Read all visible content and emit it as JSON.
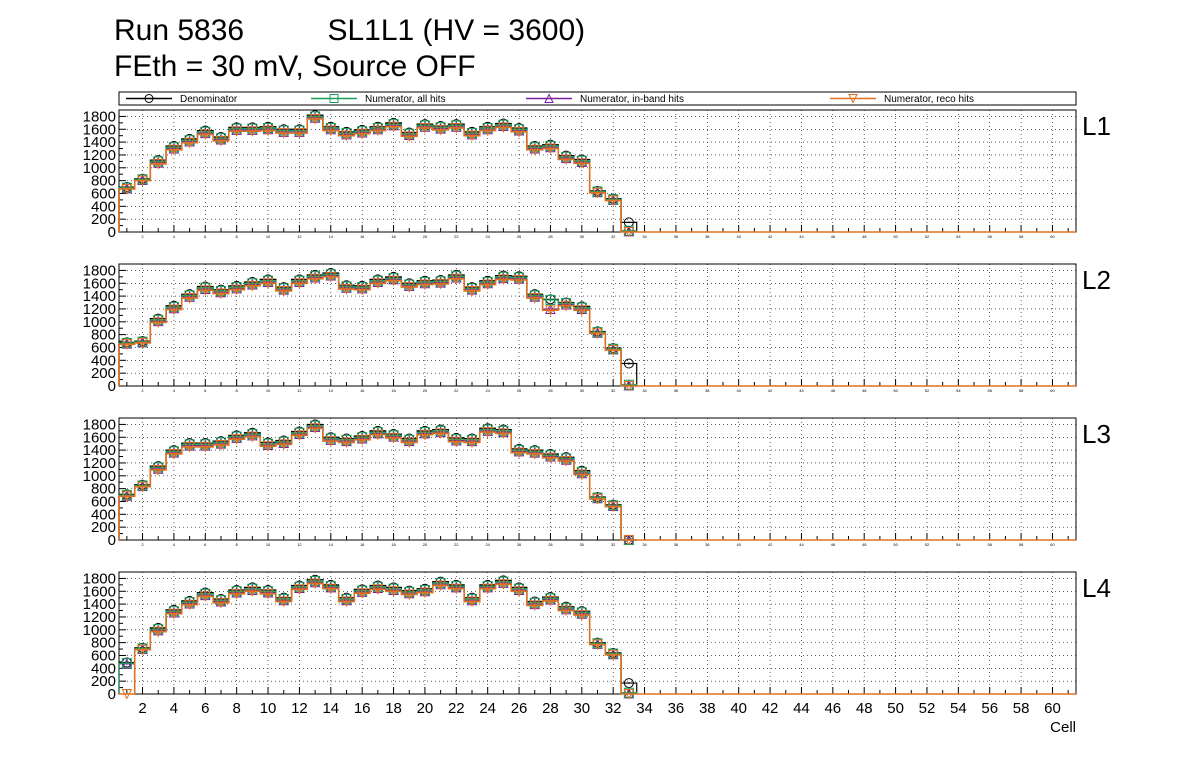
{
  "title_line1": "Run 5836          SL1L1 (HV = 3600)",
  "title_line2": "FEth = 30 mV, Source OFF",
  "colors": {
    "denominator": "#000000",
    "numerator_all": "#1a9e5a",
    "numerator_inband": "#7a1fa2",
    "numerator_reco": "#e07020"
  },
  "legend": [
    {
      "label": "Denominator",
      "marker": "circle",
      "color": "#000000"
    },
    {
      "label": "Numerator, all hits",
      "marker": "square",
      "color": "#1a9e5a"
    },
    {
      "label": "Numerator, in-band hits",
      "marker": "triangle-up",
      "color": "#7a1fa2"
    },
    {
      "label": "Numerator, reco hits",
      "marker": "triangle-down",
      "color": "#e07020"
    }
  ],
  "chart_data": {
    "type": "histogram",
    "xlabel": "Cell",
    "xlim": [
      0.5,
      61.5
    ],
    "ylim": [
      0,
      1900
    ],
    "xticks": [
      2,
      4,
      6,
      8,
      10,
      12,
      14,
      16,
      18,
      20,
      22,
      24,
      26,
      28,
      30,
      32,
      34,
      36,
      38,
      40,
      42,
      44,
      46,
      48,
      50,
      52,
      54,
      56,
      58,
      60
    ],
    "yticks": [
      0,
      200,
      400,
      600,
      800,
      1000,
      1200,
      1400,
      1600,
      1800
    ],
    "grid": true,
    "legend_position": "top",
    "cells": [
      1,
      2,
      3,
      4,
      5,
      6,
      7,
      8,
      9,
      10,
      11,
      12,
      13,
      14,
      15,
      16,
      17,
      18,
      19,
      20,
      21,
      22,
      23,
      24,
      25,
      26,
      27,
      28,
      29,
      30,
      31,
      32,
      33
    ],
    "panels": [
      {
        "label": "L1",
        "denominator": [
          700,
          830,
          1120,
          1340,
          1450,
          1580,
          1480,
          1630,
          1630,
          1640,
          1600,
          1600,
          1820,
          1640,
          1560,
          1590,
          1640,
          1700,
          1550,
          1680,
          1650,
          1680,
          1560,
          1640,
          1690,
          1620,
          1340,
          1360,
          1190,
          1130,
          640,
          520,
          150
        ],
        "numerator_all": [
          690,
          820,
          1100,
          1320,
          1430,
          1560,
          1460,
          1610,
          1610,
          1620,
          1580,
          1580,
          1800,
          1620,
          1540,
          1570,
          1620,
          1680,
          1530,
          1660,
          1630,
          1660,
          1540,
          1620,
          1670,
          1600,
          1320,
          1340,
          1170,
          1110,
          630,
          510,
          20
        ],
        "numerator_inband": [
          680,
          810,
          1080,
          1300,
          1410,
          1540,
          1440,
          1590,
          1590,
          1600,
          1560,
          1560,
          1780,
          1600,
          1520,
          1550,
          1600,
          1660,
          1510,
          1640,
          1610,
          1640,
          1520,
          1600,
          1650,
          1580,
          1300,
          1320,
          1150,
          1090,
          620,
          500,
          10
        ],
        "numerator_reco": [
          670,
          800,
          1060,
          1280,
          1390,
          1520,
          1420,
          1570,
          1570,
          1580,
          1540,
          1540,
          1760,
          1580,
          1500,
          1530,
          1580,
          1640,
          1490,
          1620,
          1590,
          1620,
          1500,
          1580,
          1630,
          1560,
          1280,
          1300,
          1130,
          1070,
          610,
          490,
          0
        ]
      },
      {
        "label": "L2",
        "denominator": [
          680,
          700,
          1050,
          1250,
          1430,
          1550,
          1500,
          1560,
          1620,
          1660,
          1540,
          1660,
          1730,
          1760,
          1570,
          1560,
          1660,
          1700,
          1600,
          1640,
          1650,
          1730,
          1540,
          1640,
          1720,
          1710,
          1430,
          1350,
          1300,
          1240,
          850,
          590,
          350
        ],
        "numerator_all": [
          670,
          690,
          1030,
          1230,
          1410,
          1530,
          1480,
          1540,
          1600,
          1640,
          1520,
          1640,
          1710,
          1740,
          1550,
          1540,
          1640,
          1680,
          1580,
          1620,
          1630,
          1710,
          1520,
          1620,
          1700,
          1690,
          1410,
          1340,
          1290,
          1220,
          840,
          580,
          20
        ],
        "numerator_inband": [
          660,
          680,
          1010,
          1210,
          1390,
          1510,
          1460,
          1520,
          1580,
          1620,
          1500,
          1620,
          1690,
          1720,
          1530,
          1520,
          1620,
          1660,
          1560,
          1600,
          1610,
          1690,
          1500,
          1600,
          1680,
          1670,
          1390,
          1200,
          1270,
          1200,
          830,
          570,
          10
        ],
        "numerator_reco": [
          650,
          670,
          990,
          1190,
          1370,
          1490,
          1440,
          1500,
          1560,
          1600,
          1480,
          1600,
          1670,
          1700,
          1510,
          1500,
          1600,
          1640,
          1540,
          1580,
          1590,
          1670,
          1480,
          1580,
          1660,
          1650,
          1370,
          1180,
          1250,
          1180,
          820,
          560,
          0
        ]
      },
      {
        "label": "L3",
        "denominator": [
          710,
          860,
          1150,
          1400,
          1510,
          1510,
          1540,
          1630,
          1670,
          1520,
          1550,
          1690,
          1800,
          1600,
          1580,
          1620,
          1700,
          1650,
          1580,
          1700,
          1720,
          1590,
          1580,
          1740,
          1720,
          1420,
          1400,
          1340,
          1290,
          1080,
          670,
          550,
          0
        ],
        "numerator_all": [
          700,
          850,
          1130,
          1380,
          1490,
          1490,
          1520,
          1610,
          1650,
          1500,
          1530,
          1670,
          1780,
          1580,
          1560,
          1600,
          1680,
          1630,
          1560,
          1680,
          1700,
          1570,
          1560,
          1720,
          1700,
          1400,
          1380,
          1320,
          1270,
          1060,
          660,
          540,
          0
        ],
        "numerator_inband": [
          690,
          840,
          1110,
          1360,
          1470,
          1470,
          1500,
          1590,
          1630,
          1480,
          1510,
          1650,
          1760,
          1560,
          1540,
          1580,
          1660,
          1610,
          1540,
          1660,
          1680,
          1550,
          1540,
          1700,
          1680,
          1380,
          1360,
          1300,
          1250,
          1040,
          650,
          530,
          0
        ],
        "numerator_reco": [
          680,
          830,
          1090,
          1340,
          1450,
          1450,
          1480,
          1570,
          1610,
          1460,
          1490,
          1630,
          1740,
          1540,
          1520,
          1560,
          1640,
          1590,
          1520,
          1640,
          1660,
          1530,
          1520,
          1680,
          1660,
          1360,
          1340,
          1280,
          1230,
          1020,
          640,
          520,
          0
        ]
      },
      {
        "label": "L4",
        "denominator": [
          490,
          720,
          1030,
          1310,
          1450,
          1580,
          1480,
          1620,
          1660,
          1620,
          1500,
          1690,
          1780,
          1700,
          1500,
          1630,
          1690,
          1660,
          1610,
          1640,
          1750,
          1700,
          1500,
          1700,
          1770,
          1660,
          1440,
          1510,
          1360,
          1290,
          800,
          640,
          170
        ],
        "numerator_all": [
          480,
          710,
          1010,
          1290,
          1430,
          1560,
          1460,
          1600,
          1640,
          1600,
          1480,
          1670,
          1760,
          1680,
          1480,
          1610,
          1670,
          1640,
          1590,
          1620,
          1730,
          1680,
          1480,
          1680,
          1750,
          1640,
          1420,
          1490,
          1340,
          1270,
          790,
          630,
          20
        ],
        "numerator_inband": [
          470,
          700,
          990,
          1270,
          1410,
          1540,
          1440,
          1580,
          1620,
          1580,
          1460,
          1650,
          1740,
          1660,
          1460,
          1590,
          1650,
          1620,
          1570,
          1600,
          1710,
          1660,
          1460,
          1660,
          1730,
          1620,
          1400,
          1470,
          1320,
          1250,
          780,
          620,
          10
        ],
        "numerator_reco": [
          0,
          690,
          970,
          1250,
          1390,
          1520,
          1420,
          1560,
          1600,
          1560,
          1440,
          1630,
          1720,
          1640,
          1440,
          1570,
          1630,
          1600,
          1550,
          1580,
          1690,
          1640,
          1440,
          1640,
          1710,
          1600,
          1380,
          1450,
          1300,
          1230,
          770,
          610,
          0
        ]
      }
    ]
  }
}
